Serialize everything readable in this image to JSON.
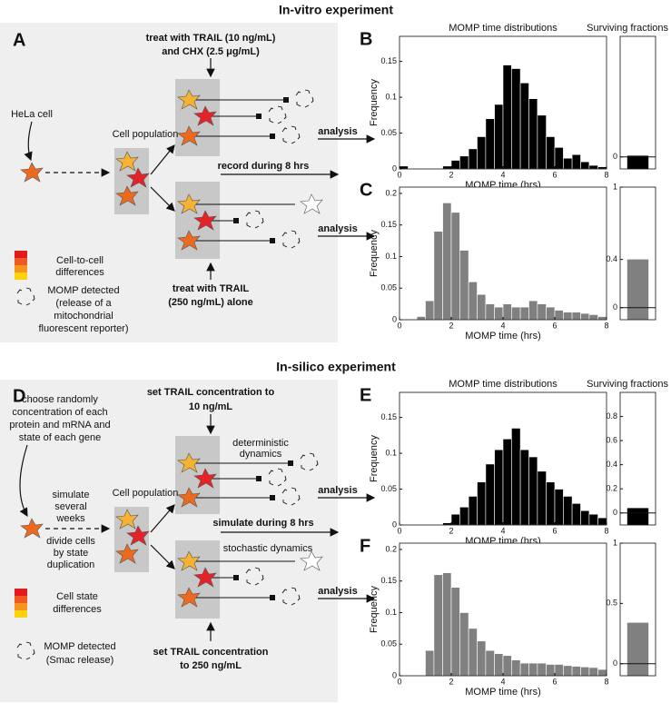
{
  "in_vitro": {
    "title": "In-vitro experiment",
    "panel_label": "A",
    "treatment_top": [
      "treat with TRAIL (10 ng/mL)",
      "and CHX (2.5 μg/mL)"
    ],
    "hela": "HeLa cell",
    "population": "Cell population",
    "record": "record during 8 hrs",
    "analysis_top": "analysis",
    "analysis_bottom": "analysis",
    "treatment_bottom": [
      "treat with TRAIL",
      "(250 ng/mL) alone"
    ],
    "legend_colors": [
      "Cell-to-cell",
      "differences"
    ],
    "legend_momp": [
      "MOMP detected",
      "(release of a",
      "mitochondrial",
      "fluorescent reporter)"
    ]
  },
  "in_silico": {
    "title": "In-silico experiment",
    "panel_label": "D",
    "choose": [
      "choose randomly",
      "concentration of each",
      "protein and mRNA and",
      "state of each gene"
    ],
    "simulate_weeks": [
      "simulate",
      "several",
      "weeks"
    ],
    "divide": [
      "divide cells",
      "by state",
      "duplication"
    ],
    "population": "Cell population",
    "treatment_top": [
      "set TRAIL concentration to",
      "10 ng/mL"
    ],
    "deterministic": [
      "deterministic",
      "dynamics"
    ],
    "simulate": "simulate during 8 hrs",
    "stochastic": "stochastic dynamics",
    "analysis_top": "analysis",
    "analysis_bottom": "analysis",
    "treatment_bottom": [
      "set TRAIL concentration",
      "to 250 ng/mL"
    ],
    "legend_colors": [
      "Cell state",
      "differences"
    ],
    "legend_momp": [
      "MOMP detected",
      "(Smac release)"
    ]
  },
  "chart_data": [
    {
      "type": "histogram",
      "panel_label": "B",
      "title": "MOMP time distributions",
      "xlabel": "MOMP time (hrs)",
      "ylabel": "Frequency",
      "color": "#000000",
      "bins": [
        0,
        0.33,
        0.67,
        1,
        1.33,
        1.67,
        2,
        2.33,
        2.67,
        3,
        3.33,
        3.67,
        4,
        4.33,
        4.67,
        5,
        5.33,
        5.67,
        6,
        6.33,
        6.67,
        7,
        7.33,
        7.67,
        8
      ],
      "values": [
        0.004,
        0,
        0,
        0,
        0,
        0.004,
        0.012,
        0.018,
        0.028,
        0.045,
        0.07,
        0.09,
        0.145,
        0.14,
        0.12,
        0.098,
        0.075,
        0.045,
        0.03,
        0.015,
        0.02,
        0.01,
        0.005,
        0.003
      ],
      "xlim": [
        0,
        8
      ],
      "xticks": [
        0,
        2,
        4,
        6,
        8
      ],
      "ylim": [
        0,
        0.185
      ],
      "yticks": [
        0,
        0.05,
        0.1,
        0.15
      ]
    },
    {
      "type": "bar",
      "title": "Surviving fractions",
      "color": "#000000",
      "values": [
        0.01
      ],
      "ylim": [
        -0.1,
        1
      ],
      "yticks": [
        0
      ]
    },
    {
      "type": "histogram",
      "panel_label": "C",
      "xlabel": "MOMP time (hrs)",
      "ylabel": "Frequency",
      "color": "#808080",
      "bins": [
        0,
        0.33,
        0.67,
        1,
        1.33,
        1.67,
        2,
        2.33,
        2.67,
        3,
        3.33,
        3.67,
        4,
        4.33,
        4.67,
        5,
        5.33,
        5.67,
        6,
        6.33,
        6.67,
        7,
        7.33,
        7.67,
        8
      ],
      "values": [
        0,
        0,
        0.005,
        0.03,
        0.14,
        0.185,
        0.17,
        0.11,
        0.06,
        0.04,
        0.025,
        0.02,
        0.025,
        0.02,
        0.02,
        0.03,
        0.025,
        0.02,
        0.015,
        0.012,
        0.012,
        0.01,
        0.008,
        0.005
      ],
      "xlim": [
        0,
        8
      ],
      "xticks": [
        0,
        2,
        4,
        6,
        8
      ],
      "ylim": [
        0,
        0.21
      ],
      "yticks": [
        0,
        0.05,
        0.1,
        0.15,
        0.2
      ]
    },
    {
      "type": "bar",
      "color": "#808080",
      "values": [
        0.4
      ],
      "ylim": [
        -0.1,
        1
      ],
      "yticks": [
        0,
        0.4,
        1
      ]
    },
    {
      "type": "histogram",
      "panel_label": "E",
      "title": "MOMP time distributions",
      "xlabel": "MOMP time (hrs)",
      "ylabel": "Frequency",
      "color": "#000000",
      "bins": [
        0,
        0.33,
        0.67,
        1,
        1.33,
        1.67,
        2,
        2.33,
        2.67,
        3,
        3.33,
        3.67,
        4,
        4.33,
        4.67,
        5,
        5.33,
        5.67,
        6,
        6.33,
        6.67,
        7,
        7.33,
        7.67,
        8
      ],
      "values": [
        0,
        0,
        0,
        0,
        0,
        0.003,
        0.015,
        0.025,
        0.04,
        0.06,
        0.085,
        0.105,
        0.12,
        0.135,
        0.105,
        0.095,
        0.075,
        0.06,
        0.05,
        0.04,
        0.03,
        0.02,
        0.015,
        0.01
      ],
      "xlim": [
        0,
        8
      ],
      "xticks": [
        0,
        2,
        4,
        6,
        8
      ],
      "ylim": [
        0,
        0.185
      ],
      "yticks": [
        0,
        0.05,
        0.1,
        0.15
      ]
    },
    {
      "type": "bar",
      "title": "Surviving fractions",
      "color": "#000000",
      "values": [
        0.04
      ],
      "ylim": [
        -0.1,
        1
      ],
      "yticks": [
        0,
        0.2,
        0.4,
        0.6,
        0.8
      ]
    },
    {
      "type": "histogram",
      "panel_label": "F",
      "xlabel": "MOMP time (hrs)",
      "ylabel": "Frequency",
      "color": "#808080",
      "bins": [
        0,
        0.33,
        0.67,
        1,
        1.33,
        1.67,
        2,
        2.33,
        2.67,
        3,
        3.33,
        3.67,
        4,
        4.33,
        4.67,
        5,
        5.33,
        5.67,
        6,
        6.33,
        6.67,
        7,
        7.33,
        7.67,
        8
      ],
      "values": [
        0,
        0,
        0,
        0.04,
        0.16,
        0.163,
        0.14,
        0.1,
        0.075,
        0.055,
        0.04,
        0.035,
        0.032,
        0.025,
        0.02,
        0.02,
        0.02,
        0.018,
        0.018,
        0.016,
        0.015,
        0.014,
        0.013,
        0.01
      ],
      "xlim": [
        0,
        8
      ],
      "xticks": [
        0,
        2,
        4,
        6,
        8
      ],
      "ylim": [
        0,
        0.21
      ],
      "yticks": [
        0,
        0.05,
        0.1,
        0.15,
        0.2
      ]
    },
    {
      "type": "bar",
      "color": "#808080",
      "values": [
        0.34
      ],
      "ylim": [
        -0.1,
        1
      ],
      "yticks": [
        0,
        0.5,
        1
      ]
    }
  ]
}
